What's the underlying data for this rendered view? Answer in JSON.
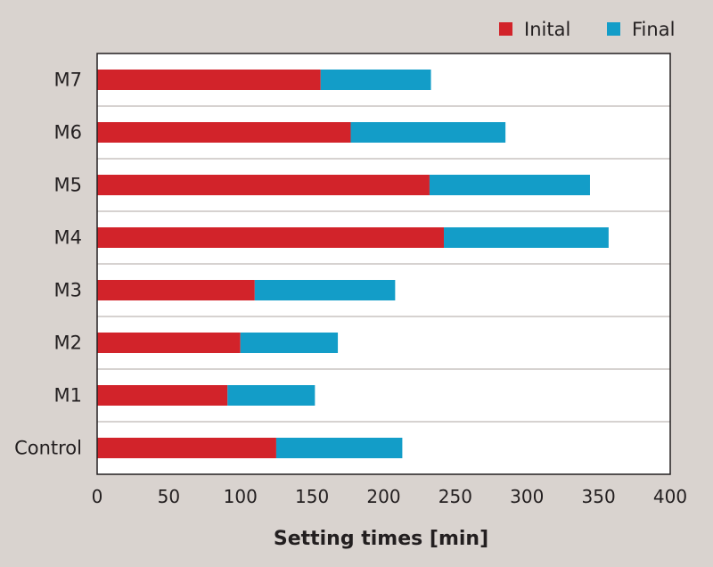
{
  "chart_data": {
    "type": "bar",
    "orientation": "horizontal",
    "stacked": true,
    "categories": [
      "Control",
      "M1",
      "M2",
      "M3",
      "M4",
      "M5",
      "M6",
      "M7"
    ],
    "series": [
      {
        "name": "Inital",
        "color": "#d2232a",
        "values": [
          125,
          91,
          100,
          110,
          242,
          232,
          177,
          156
        ]
      },
      {
        "name": "Final",
        "color": "#139dc8",
        "values": [
          88,
          61,
          68,
          98,
          115,
          112,
          108,
          77
        ]
      }
    ],
    "title": "",
    "xlabel": "Setting times [min]",
    "ylabel": "",
    "xlim": [
      0,
      400
    ],
    "xticks": [
      "0",
      "50",
      "100",
      "150",
      "200",
      "250",
      "300",
      "350",
      "400"
    ],
    "grid": "horizontal separators",
    "legend": "top-right"
  },
  "colors": {
    "background": "#d9d3cf",
    "plot_area": "#ffffff",
    "separator": "#c8c4c1"
  }
}
